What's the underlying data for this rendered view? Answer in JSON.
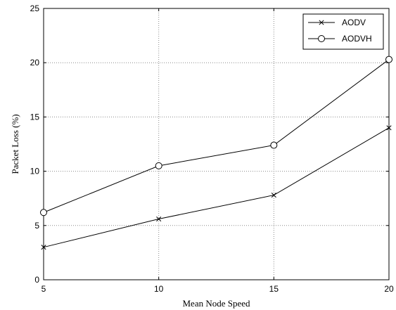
{
  "chart_data": {
    "type": "line",
    "title": "",
    "xlabel": "Mean Node Speed",
    "ylabel": "Packet Loss (%)",
    "x": [
      5,
      10,
      15,
      20
    ],
    "xlim": [
      5,
      20
    ],
    "ylim": [
      0,
      25
    ],
    "xticks": [
      "5",
      "10",
      "15",
      "20"
    ],
    "yticks": [
      "0",
      "5",
      "10",
      "15",
      "20",
      "25"
    ],
    "grid": true,
    "legend_position": "top-right",
    "series": [
      {
        "name": "AODV",
        "marker": "x",
        "color": "#000000",
        "values": [
          3.0,
          5.6,
          7.8,
          14.0
        ]
      },
      {
        "name": "AODVH",
        "marker": "circle",
        "color": "#000000",
        "values": [
          6.2,
          10.5,
          12.4,
          20.3
        ]
      }
    ]
  }
}
